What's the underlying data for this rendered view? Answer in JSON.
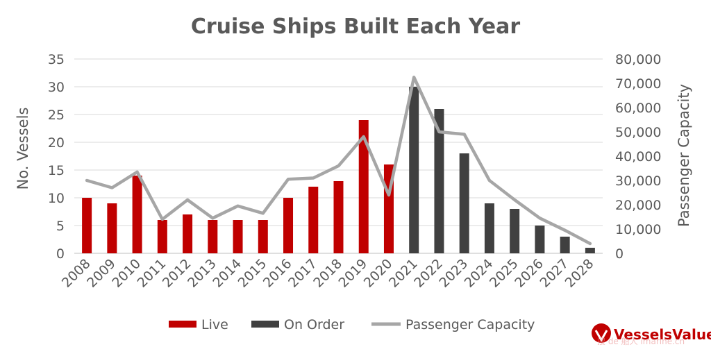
{
  "chart_data": {
    "type": "bar",
    "title": "Cruise Ships Built Each Year",
    "ylabel": "No. Vessels",
    "y2label": "Passenger Capacity",
    "ylim": [
      0,
      35
    ],
    "y2lim": [
      0,
      80000
    ],
    "yticks": [
      "0",
      "5",
      "10",
      "15",
      "20",
      "25",
      "30",
      "35"
    ],
    "y2ticks": [
      "0",
      "10,000",
      "20,000",
      "30,000",
      "40,000",
      "50,000",
      "60,000",
      "70,000",
      "80,000"
    ],
    "categories": [
      "2008",
      "2009",
      "2010",
      "2011",
      "2012",
      "2013",
      "2014",
      "2015",
      "2016",
      "2017",
      "2018",
      "2019",
      "2020",
      "2021",
      "2022",
      "2023",
      "2024",
      "2025",
      "2026",
      "2027",
      "2028"
    ],
    "series": [
      {
        "name": "Live",
        "type": "bar",
        "color": "#c00000",
        "values": [
          10,
          9,
          14,
          6,
          7,
          6,
          6,
          6,
          10,
          12,
          13,
          24,
          16,
          null,
          null,
          null,
          null,
          null,
          null,
          null,
          null
        ]
      },
      {
        "name": "On Order",
        "type": "bar",
        "color": "#404040",
        "values": [
          null,
          null,
          null,
          null,
          null,
          null,
          null,
          null,
          null,
          null,
          null,
          null,
          16,
          30,
          26,
          18,
          9,
          8,
          5,
          3,
          1
        ]
      },
      {
        "name": "Passenger Capacity",
        "type": "line",
        "axis": "right",
        "color": "#a6a6a6",
        "values": [
          30000,
          27000,
          33500,
          14000,
          22000,
          14500,
          19500,
          16500,
          30500,
          31000,
          36000,
          48000,
          24000,
          72500,
          50000,
          49000,
          30000,
          22000,
          14500,
          9500,
          4000
        ]
      }
    ],
    "grid": true,
    "legend": "bottom"
  },
  "logo": {
    "text": "VesselsValue",
    "color": "#c00000"
  },
  "watermark": {
    "text": "搜 de 船人 imarine.cn"
  }
}
